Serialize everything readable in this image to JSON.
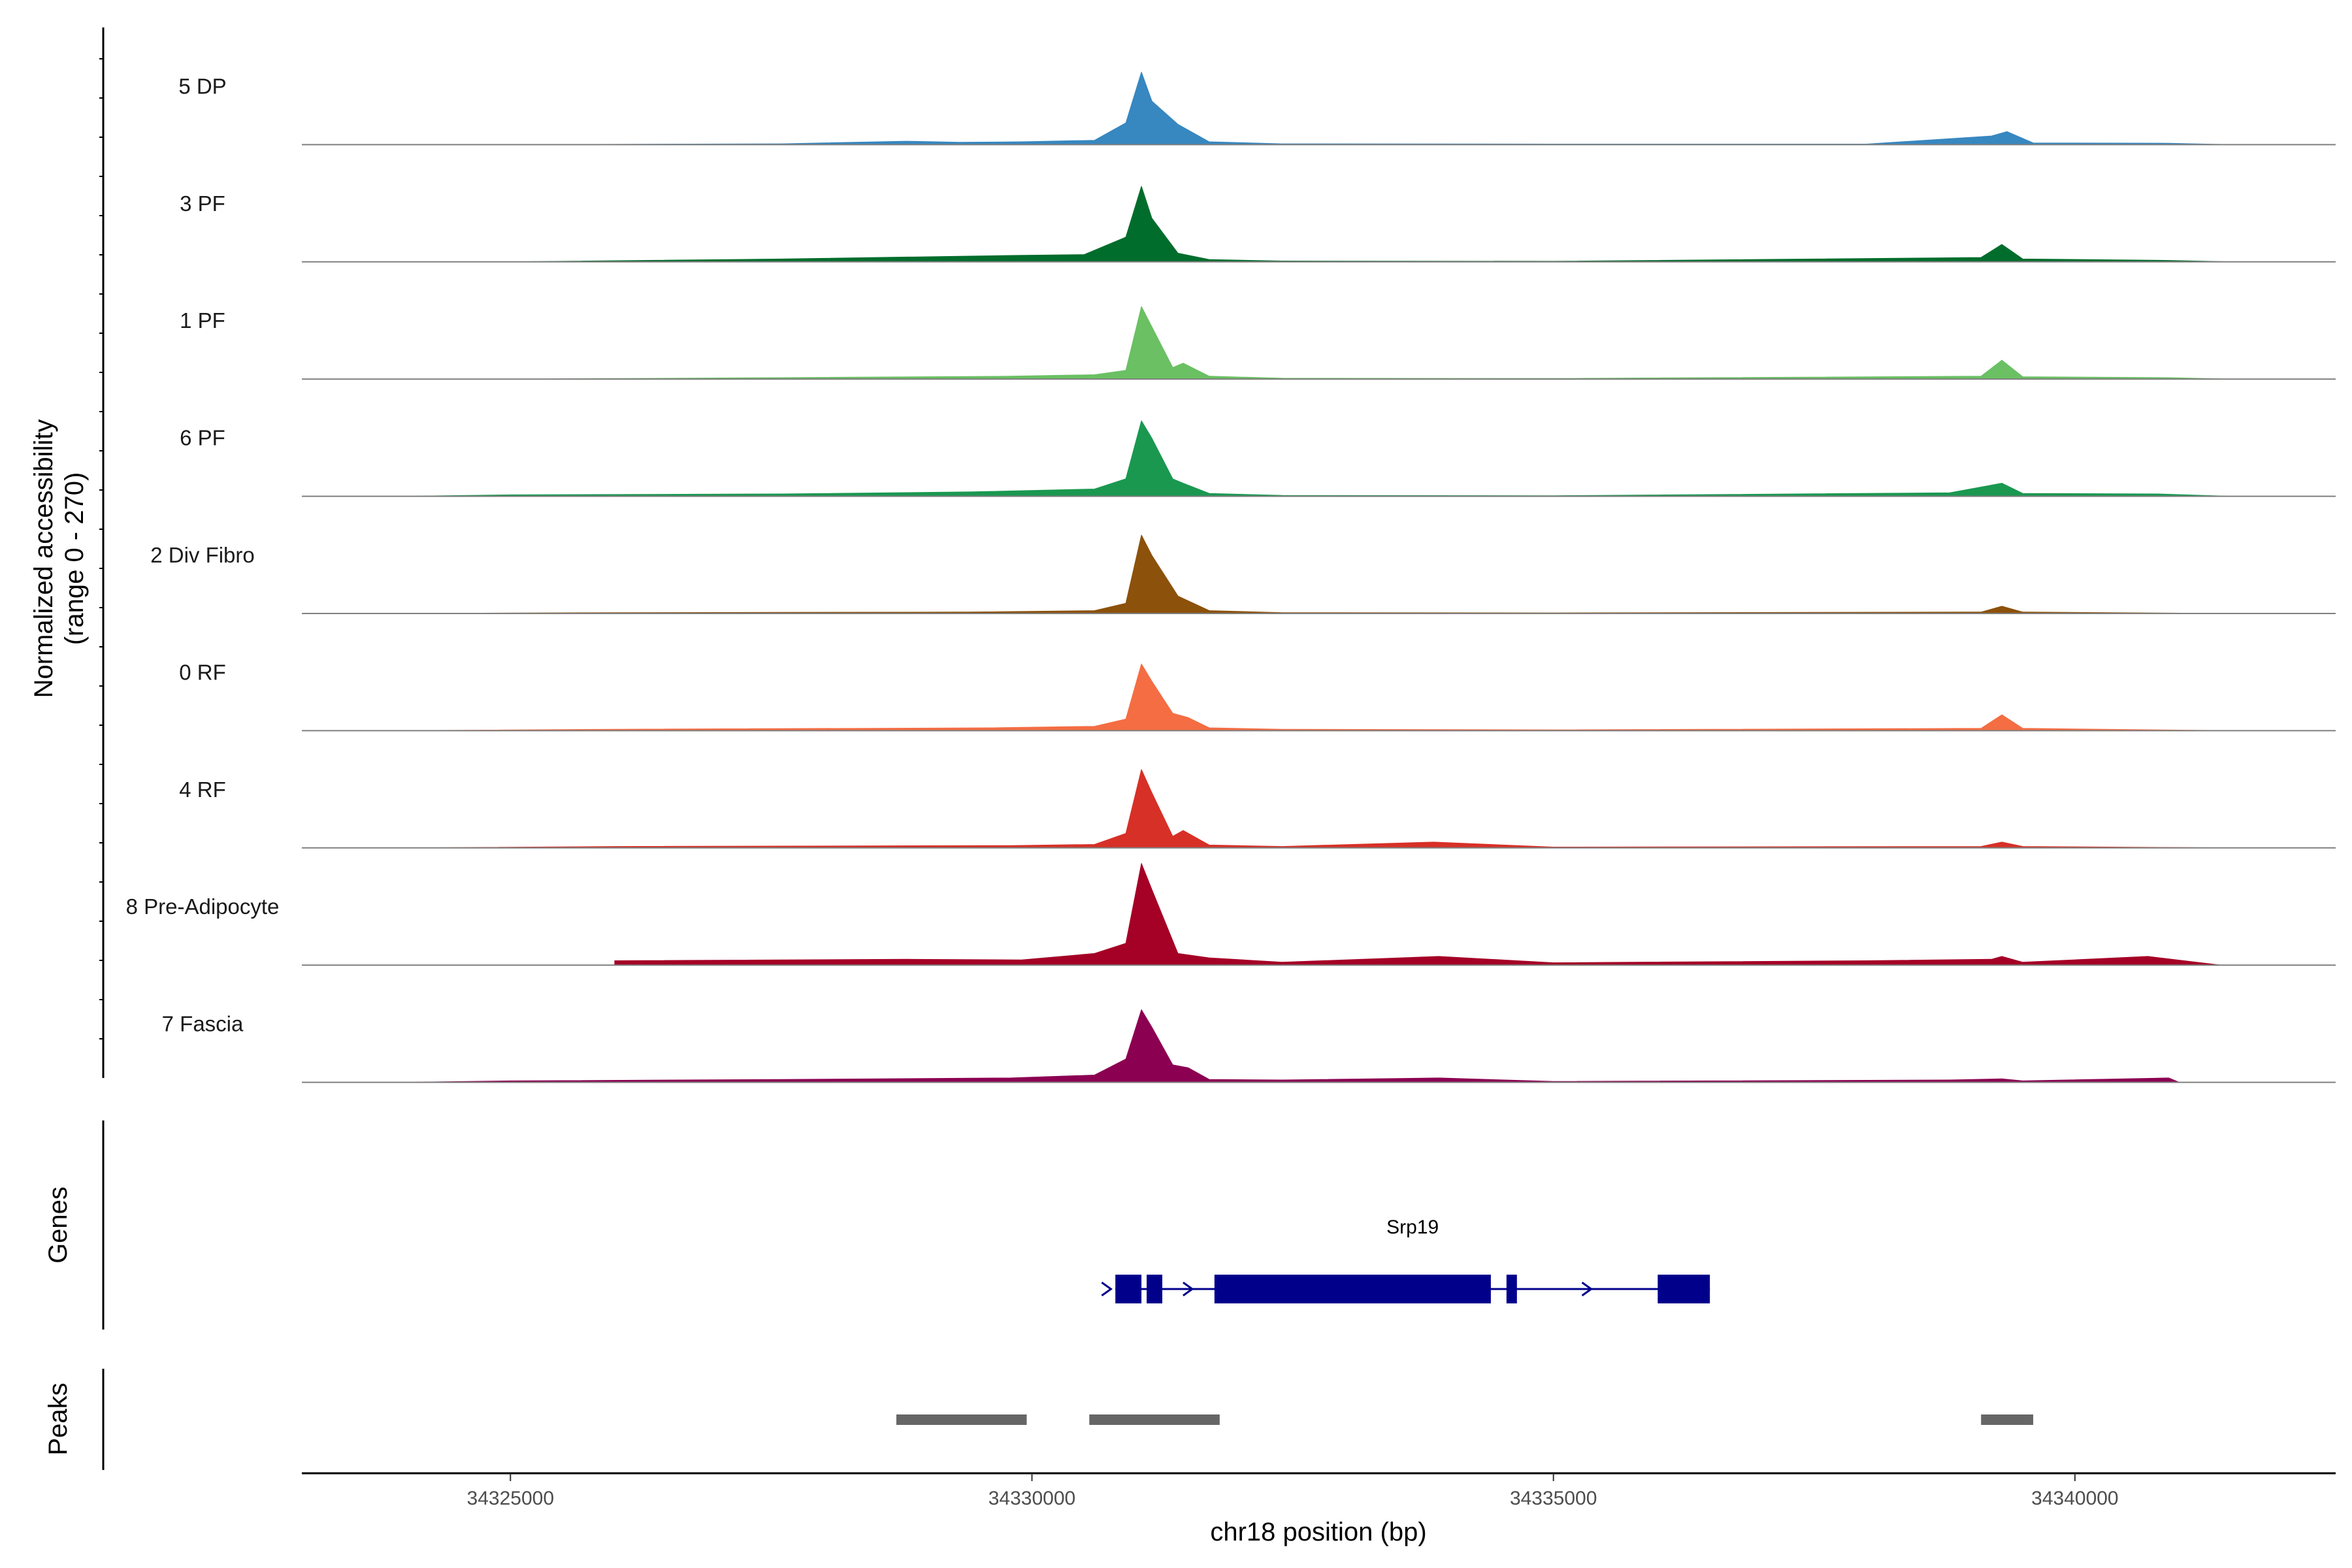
{
  "chart_data": {
    "type": "area",
    "title": "",
    "region": "chr18",
    "xlabel": "chr18 position (bp)",
    "ylabel": "Normalized accessibility\n(range 0 - 270)",
    "y_range": [
      0,
      270
    ],
    "xlim": [
      34323000,
      34342500
    ],
    "x_ticks": [
      34325000,
      34330000,
      34335000,
      34340000
    ],
    "x_tick_labels": [
      "34325000",
      "34330000",
      "34335000",
      "34340000"
    ],
    "grid": false,
    "legend": "none",
    "tracks": [
      {
        "name": "5 DP",
        "color": "#3787c0",
        "x": [
          34325000,
          34327600,
          34328800,
          34329300,
          34329900,
          34330600,
          34330900,
          34331050,
          34331150,
          34331400,
          34331700,
          34332400,
          34335000,
          34338000,
          34339200,
          34339350,
          34339600,
          34340900,
          34341500
        ],
        "y": [
          0,
          3,
          12,
          8,
          10,
          15,
          75,
          250,
          150,
          70,
          10,
          3,
          2,
          2,
          30,
          45,
          6,
          5,
          0
        ]
      },
      {
        "name": "3 PF",
        "color": "#006d2c",
        "x": [
          34325000,
          34327600,
          34329800,
          34330500,
          34330900,
          34331050,
          34331150,
          34331400,
          34331700,
          34332400,
          34335000,
          34339100,
          34339300,
          34339500,
          34340900,
          34341500
        ],
        "y": [
          0,
          10,
          22,
          25,
          85,
          260,
          150,
          30,
          8,
          3,
          2,
          15,
          60,
          10,
          5,
          0
        ]
      },
      {
        "name": "1 PF",
        "color": "#6ac063",
        "x": [
          34325000,
          34327600,
          34329800,
          34330600,
          34330900,
          34331050,
          34331150,
          34331350,
          34331450,
          34331700,
          34332400,
          34335000,
          34339100,
          34339300,
          34339500,
          34340900,
          34341500
        ],
        "y": [
          0,
          5,
          10,
          15,
          30,
          250,
          180,
          40,
          55,
          10,
          3,
          2,
          10,
          65,
          8,
          5,
          0
        ]
      },
      {
        "name": "6 PF",
        "color": "#1a9850",
        "x": [
          34324000,
          34325000,
          34327600,
          34329400,
          34330600,
          34330900,
          34331050,
          34331150,
          34331350,
          34331450,
          34331700,
          34332400,
          34335000,
          34338800,
          34339300,
          34339500,
          34340800,
          34341500
        ],
        "y": [
          0,
          5,
          8,
          15,
          25,
          60,
          260,
          200,
          60,
          45,
          10,
          3,
          2,
          12,
          45,
          10,
          8,
          0
        ]
      },
      {
        "name": "2 Div Fibro",
        "color": "#8c510a",
        "x": [
          34324000,
          34326000,
          34329400,
          34330600,
          34330900,
          34331050,
          34331150,
          34331400,
          34331700,
          34332400,
          34335000,
          34339100,
          34339300,
          34339500,
          34341500
        ],
        "y": [
          0,
          3,
          5,
          10,
          35,
          270,
          200,
          60,
          10,
          3,
          2,
          5,
          25,
          5,
          0
        ]
      },
      {
        "name": "0 RF",
        "color": "#f46d43",
        "x": [
          34324000,
          34326000,
          34329600,
          34330600,
          34330900,
          34331050,
          34331150,
          34331350,
          34331500,
          34331700,
          34332400,
          34335000,
          34339100,
          34339300,
          34339500,
          34341500
        ],
        "y": [
          0,
          5,
          10,
          15,
          40,
          230,
          170,
          60,
          45,
          10,
          5,
          3,
          8,
          55,
          8,
          0
        ]
      },
      {
        "name": "4 RF",
        "color": "#d73027",
        "x": [
          34324000,
          34326000,
          34329800,
          34330600,
          34330900,
          34331050,
          34331150,
          34331350,
          34331450,
          34331700,
          34332400,
          34333850,
          34335000,
          34339100,
          34339300,
          34339500,
          34341500
        ],
        "y": [
          0,
          5,
          8,
          12,
          50,
          270,
          190,
          40,
          60,
          10,
          5,
          20,
          3,
          5,
          20,
          5,
          0
        ]
      },
      {
        "name": "8 Pre-Adipocyte",
        "color": "#a50026",
        "x": [
          34326000,
          34328800,
          34329900,
          34330600,
          34330900,
          34331050,
          34331150,
          34331400,
          34331700,
          34332400,
          34333900,
          34335000,
          34338000,
          34339200,
          34339300,
          34339500,
          34340700,
          34341400
        ],
        "y": [
          15,
          20,
          18,
          40,
          75,
          350,
          260,
          40,
          25,
          10,
          30,
          8,
          15,
          20,
          30,
          10,
          30,
          0
        ]
      },
      {
        "name": "7 Fascia",
        "color": "#8c0052",
        "x": [
          34324000,
          34325000,
          34327600,
          34329800,
          34330600,
          34330900,
          34331050,
          34331150,
          34331350,
          34331500,
          34331700,
          34332400,
          34333900,
          34335000,
          34338800,
          34339300,
          34339500,
          34340900,
          34341000
        ],
        "y": [
          0,
          5,
          10,
          15,
          25,
          80,
          250,
          190,
          60,
          50,
          10,
          8,
          15,
          3,
          8,
          12,
          5,
          15,
          0
        ]
      }
    ],
    "genes_track": {
      "label": "Genes",
      "genes": [
        {
          "name": "Srp19",
          "strand": "+",
          "start": 34330800,
          "end": 34336500,
          "exons": [
            [
              34330800,
              34331050
            ],
            [
              34331100,
              34331250
            ],
            [
              34331750,
              34334400
            ],
            [
              34334550,
              34334650
            ],
            [
              34336000,
              34336500
            ]
          ],
          "color": "#00008b"
        }
      ]
    },
    "peaks_track": {
      "label": "Peaks",
      "peaks": [
        [
          34328700,
          34329950
        ],
        [
          34330550,
          34331800
        ],
        [
          34339100,
          34339600
        ]
      ],
      "color": "#666666"
    }
  }
}
